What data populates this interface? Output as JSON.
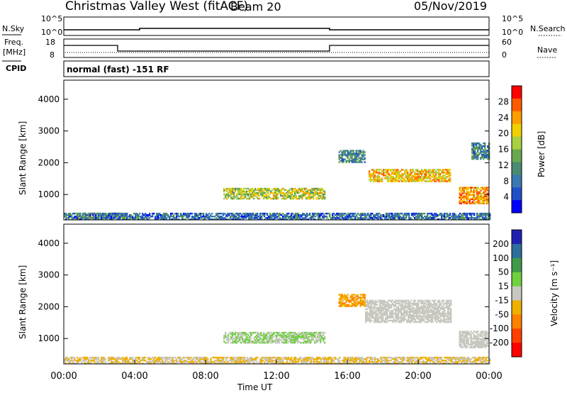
{
  "header": {
    "station": "Christmas Valley West (fitACF)",
    "beam": "Beam 20",
    "date": "05/Nov/2019"
  },
  "strip": {
    "left_label_top": "N.Sky",
    "left_ticks_top": [
      "10^5",
      "10^0"
    ],
    "left_label_freq_line1": "Freq.",
    "left_label_freq_line2": "[MHz]",
    "left_ticks_freq": [
      "18",
      "8"
    ],
    "cpid_label": "CPID",
    "cpid_text": "normal (fast) -151 RF",
    "right_label_top": "N.Search",
    "right_ticks_top": [
      "10^5",
      "10^0"
    ],
    "right_label_nave": "Nave",
    "right_ticks_nave": [
      "60",
      "0"
    ]
  },
  "chart_data": [
    {
      "type": "heatmap",
      "name": "power",
      "ylabel": "Slant Range [km]",
      "yticks": [
        "4000",
        "3000",
        "2000",
        "1000"
      ],
      "ylim": [
        200,
        4600
      ],
      "xlim_hours": [
        0,
        24
      ],
      "colorbar_label": "Power [dB]",
      "colorbar_ticks": [
        "28",
        "24",
        "20",
        "16",
        "12",
        "8",
        "4"
      ],
      "colorbar_colors": [
        "#0000ff",
        "#2050c8",
        "#3a7ab0",
        "#4a8a70",
        "#6aa84f",
        "#a8d040",
        "#f0d000",
        "#ff9d00",
        "#ff5a00",
        "#ff0000"
      ],
      "regions": [
        {
          "t0": 9.0,
          "t1": 14.7,
          "r0": 850,
          "r1": 1200,
          "v": 18
        },
        {
          "t0": 17.2,
          "t1": 21.8,
          "r0": 1400,
          "r1": 1800,
          "v": 22
        },
        {
          "t0": 15.5,
          "t1": 17.0,
          "r0": 2000,
          "r1": 2400,
          "v": 10
        },
        {
          "t0": 22.3,
          "t1": 23.9,
          "r0": 700,
          "r1": 1200,
          "v": 24
        },
        {
          "t0": 23.0,
          "t1": 24.0,
          "r0": 2100,
          "r1": 2600,
          "v": 10
        },
        {
          "t0": 0.7,
          "t1": 3.5,
          "r0": 250,
          "r1": 420,
          "v": 18
        },
        {
          "t0": 0.0,
          "t1": 24.0,
          "r0": 200,
          "r1": 420,
          "v": 8
        }
      ]
    },
    {
      "type": "heatmap",
      "name": "velocity",
      "ylabel": "Slant Range [km]",
      "yticks": [
        "4000",
        "3000",
        "2000",
        "1000"
      ],
      "ylim": [
        200,
        4600
      ],
      "xlim_hours": [
        0,
        24
      ],
      "xticks": [
        "00:00",
        "04:00",
        "08:00",
        "12:00",
        "16:00",
        "20:00",
        "00:00"
      ],
      "xlabel": "Time UT",
      "colorbar_label": "Velocity [m s⁻¹]",
      "colorbar_ticks": [
        "200",
        "100",
        "50",
        "15",
        "-15",
        "-50",
        "-100",
        "-200"
      ],
      "colorbar_colors": [
        "#2020b0",
        "#2e6e9a",
        "#3e9a4a",
        "#6fd040",
        "#c8c8c0",
        "#f0b000",
        "#ff8000",
        "#ff4000",
        "#ff0000"
      ],
      "regions": [
        {
          "t0": 9.0,
          "t1": 14.7,
          "r0": 850,
          "r1": 1200,
          "v": 20
        },
        {
          "t0": 17.0,
          "t1": 21.8,
          "r0": 1500,
          "r1": 2200,
          "v": 0
        },
        {
          "t0": 15.5,
          "t1": 17.0,
          "r0": 2000,
          "r1": 2400,
          "v": -60
        },
        {
          "t0": 22.3,
          "t1": 23.9,
          "r0": 700,
          "r1": 1200,
          "v": 0
        },
        {
          "t0": 0.0,
          "t1": 24.0,
          "r0": 200,
          "r1": 420,
          "v": -20
        }
      ]
    }
  ]
}
